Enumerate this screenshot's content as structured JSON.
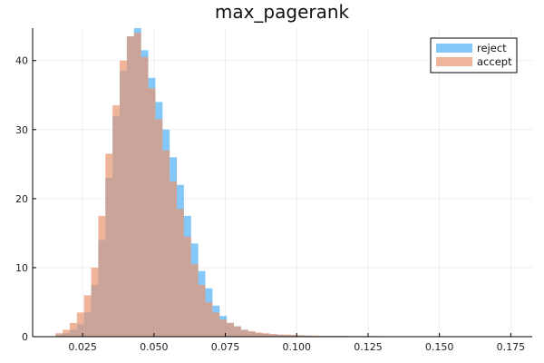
{
  "chart_data": {
    "type": "bar",
    "title": "max_pagerank",
    "xlabel": "",
    "ylabel": "",
    "xlim": [
      0.0075,
      0.1825
    ],
    "ylim": [
      0,
      44.7
    ],
    "bin_start": 0.0155,
    "bin_width": 0.0025,
    "x_ticks": [
      0.025,
      0.05,
      0.075,
      0.1,
      0.125,
      0.15,
      0.175
    ],
    "x_tick_labels": [
      "0.025",
      "0.050",
      "0.075",
      "0.100",
      "0.125",
      "0.150",
      "0.175"
    ],
    "y_ticks": [
      0,
      10,
      20,
      30,
      40
    ],
    "y_tick_labels": [
      "0",
      "10",
      "20",
      "30",
      "40"
    ],
    "grid": true,
    "legend_position": "top-right",
    "series": [
      {
        "name": "reject",
        "color": "#4fb0f5",
        "values": [
          0.3,
          0.5,
          1.0,
          1.8,
          3.5,
          7.5,
          14.0,
          23.0,
          32.0,
          38.5,
          43.5,
          44.7,
          41.5,
          37.5,
          34.0,
          30.0,
          26.0,
          22.0,
          17.5,
          13.5,
          9.5,
          7.0,
          4.5,
          3.0,
          2.0,
          1.5,
          1.0,
          0.7,
          0.5,
          0.4,
          0.3,
          0.3,
          0.2,
          0.2,
          0.2,
          0.15,
          0.1,
          0.1,
          0.1,
          0.1,
          0.1,
          0.08,
          0.08,
          0.08,
          0.08,
          0.05,
          0.05,
          0.05,
          0.05,
          0.05,
          0.05,
          0.05,
          0.05,
          0.05,
          0.05,
          0.05,
          0.05,
          0.05,
          0.05,
          0.05,
          0.05,
          0.05,
          0.05
        ]
      },
      {
        "name": "accept",
        "color": "#e8946f",
        "values": [
          0.5,
          1.0,
          2.0,
          3.5,
          6.0,
          10.0,
          17.5,
          26.5,
          33.5,
          40.0,
          43.5,
          44.0,
          40.5,
          36.0,
          31.5,
          27.0,
          22.5,
          18.5,
          14.5,
          10.5,
          7.5,
          5.0,
          3.5,
          2.5,
          2.0,
          1.5,
          1.0,
          0.8,
          0.6,
          0.5,
          0.4,
          0.3,
          0.3,
          0.25,
          0.2,
          0.15,
          0.15,
          0.1,
          0.1,
          0.1,
          0.1,
          0.08,
          0.08,
          0.08,
          0.08,
          0.08,
          0.05,
          0.05,
          0.05,
          0.05,
          0.05,
          0.05,
          0.05,
          0.05,
          0.05,
          0.05,
          0.05,
          0.05,
          0.05,
          0.05,
          0.05,
          0.05,
          0.05
        ]
      }
    ]
  }
}
